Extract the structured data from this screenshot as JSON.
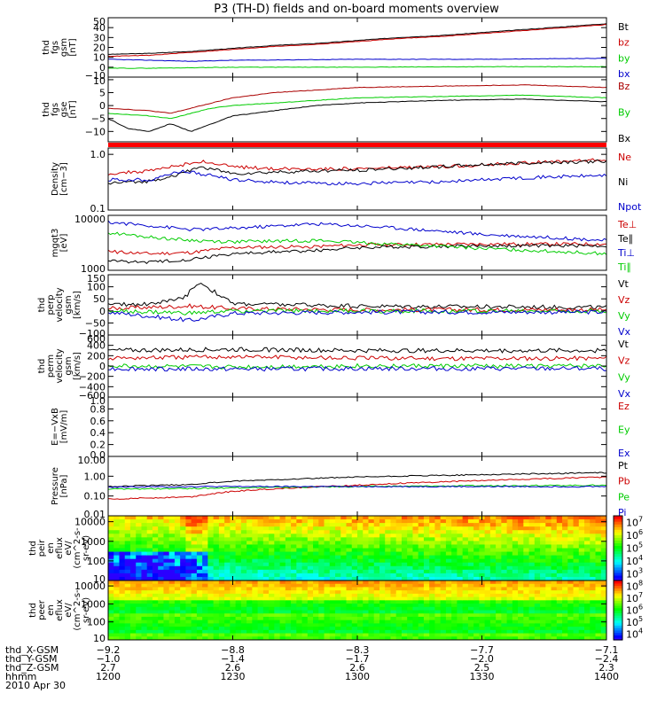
{
  "title": "P3 (TH-D) fields and on-board moments overview",
  "date_label": "2010 Apr 30",
  "chart_data": [
    {
      "id": "fgs_gsm",
      "type": "line",
      "ylabel": [
        "thd",
        "fgs",
        "gsm",
        "[nT]"
      ],
      "ylim": [
        -10,
        50
      ],
      "yticks": [
        -10,
        0,
        10,
        20,
        30,
        40,
        50
      ],
      "tick_labels": [
        "−10",
        "0",
        "10",
        "20",
        "30",
        "40",
        "50"
      ],
      "series": [
        {
          "name": "Bt",
          "color": "#000000",
          "x": [
            1200,
            1210,
            1220,
            1230,
            1240,
            1250,
            1300,
            1310,
            1320,
            1330,
            1340,
            1350,
            1400
          ],
          "y": [
            13,
            14,
            16,
            19,
            22,
            24,
            27,
            30,
            32,
            35,
            38,
            41,
            44
          ]
        },
        {
          "name": "bz",
          "color": "#cc0000",
          "x": [
            1200,
            1210,
            1220,
            1230,
            1240,
            1250,
            1300,
            1310,
            1320,
            1330,
            1340,
            1350,
            1400
          ],
          "y": [
            11,
            12,
            15,
            18,
            21,
            23,
            26,
            29,
            31,
            34,
            37,
            40,
            43
          ]
        },
        {
          "name": "by",
          "color": "#00cc00",
          "x": [
            1200,
            1210,
            1220,
            1230,
            1300,
            1330,
            1400
          ],
          "y": [
            -1,
            -1,
            -0.5,
            0,
            0,
            0.5,
            0.5
          ]
        },
        {
          "name": "bx",
          "color": "#0000cc",
          "x": [
            1200,
            1210,
            1220,
            1230,
            1300,
            1330,
            1400
          ],
          "y": [
            8,
            7,
            6,
            7,
            8,
            8,
            9
          ]
        }
      ]
    },
    {
      "id": "fgs_gse",
      "type": "line",
      "ylabel": [
        "thd",
        "fgs",
        "gse",
        "[nT]"
      ],
      "ylim": [
        -14,
        11
      ],
      "yticks": [
        -10,
        -5,
        0,
        5,
        10
      ],
      "tick_labels": [
        "−10",
        "−5",
        "0",
        "5",
        "10"
      ],
      "series": [
        {
          "name": "Bz",
          "color": "#aa0000",
          "x": [
            1200,
            1210,
            1215,
            1220,
            1225,
            1230,
            1240,
            1250,
            1300,
            1320,
            1340,
            1400
          ],
          "y": [
            -1,
            -2,
            -3,
            -1,
            1,
            3,
            5,
            6,
            7,
            7.5,
            8,
            7
          ]
        },
        {
          "name": "By",
          "color": "#00cc00",
          "x": [
            1200,
            1210,
            1215,
            1220,
            1225,
            1230,
            1240,
            1250,
            1300,
            1320,
            1340,
            1400
          ],
          "y": [
            -3,
            -4,
            -5,
            -3,
            -1,
            0,
            1,
            2,
            3,
            3.5,
            4,
            3
          ]
        },
        {
          "name": "Bx",
          "color": "#000000",
          "x": [
            1200,
            1205,
            1210,
            1215,
            1220,
            1225,
            1230,
            1240,
            1250,
            1300,
            1320,
            1340,
            1400
          ],
          "y": [
            -5,
            -9,
            -10,
            -7,
            -10,
            -7,
            -4,
            -2,
            0,
            1,
            2,
            2.5,
            1.5
          ]
        }
      ]
    },
    {
      "id": "density",
      "type": "line",
      "ylabel": [
        "Density",
        "[cm−3]"
      ],
      "log": true,
      "ylim": [
        0.1,
        1.3
      ],
      "yticks": [
        0.1,
        1.0
      ],
      "tick_labels": [
        "0.1",
        "1.0"
      ],
      "series": [
        {
          "name": "Ne",
          "color": "#cc0000",
          "x": [
            1200,
            1210,
            1218,
            1222,
            1230,
            1240,
            1250,
            1300,
            1320,
            1340,
            1400
          ],
          "y": [
            0.45,
            0.5,
            0.65,
            0.75,
            0.6,
            0.55,
            0.55,
            0.55,
            0.6,
            0.7,
            0.8
          ]
        },
        {
          "name": "Ni",
          "color": "#000000",
          "x": [
            1200,
            1210,
            1218,
            1222,
            1230,
            1240,
            1250,
            1300,
            1320,
            1340,
            1400
          ],
          "y": [
            0.3,
            0.33,
            0.45,
            0.6,
            0.45,
            0.48,
            0.5,
            0.52,
            0.6,
            0.7,
            0.75
          ]
        },
        {
          "name": "Npot",
          "color": "#0000cc",
          "x": [
            1200,
            1210,
            1218,
            1222,
            1230,
            1240,
            1250,
            1300,
            1320,
            1340,
            1400
          ],
          "y": [
            0.35,
            0.35,
            0.5,
            0.45,
            0.35,
            0.32,
            0.3,
            0.3,
            0.32,
            0.38,
            0.42
          ]
        }
      ]
    },
    {
      "id": "temperature",
      "type": "line",
      "ylabel": [
        "mgqt3",
        "[eV]"
      ],
      "log": true,
      "ylim": [
        1000,
        10000
      ],
      "yticks": [
        1000,
        10000
      ],
      "tick_labels": [
        "1000",
        "10000"
      ],
      "series": [
        {
          "name": "Te⊥",
          "color": "#cc0000",
          "x": [
            1200,
            1210,
            1220,
            1230,
            1250,
            1300,
            1330,
            1400
          ],
          "y": [
            2200,
            2000,
            2100,
            2600,
            2700,
            2900,
            3000,
            3000
          ]
        },
        {
          "name": "Te∥",
          "color": "#000000",
          "x": [
            1200,
            1210,
            1220,
            1230,
            1250,
            1300,
            1330,
            1400
          ],
          "y": [
            1500,
            1400,
            1600,
            2000,
            2300,
            2600,
            2800,
            2800
          ]
        },
        {
          "name": "Ti⊥",
          "color": "#0000cc",
          "x": [
            1200,
            1210,
            1220,
            1230,
            1250,
            1300,
            1330,
            1400
          ],
          "y": [
            7500,
            6500,
            5500,
            5800,
            7000,
            6500,
            4500,
            3500
          ]
        },
        {
          "name": "Ti∥",
          "color": "#00cc00",
          "x": [
            1200,
            1210,
            1220,
            1230,
            1250,
            1300,
            1330,
            1400
          ],
          "y": [
            4800,
            4000,
            3500,
            3300,
            3500,
            3200,
            2500,
            2000
          ]
        }
      ]
    },
    {
      "id": "perp_velocity",
      "type": "line",
      "ylabel": [
        "thd",
        "perp",
        "velocity",
        "gsm",
        "[km/s]"
      ],
      "ylim": [
        -100,
        150
      ],
      "yticks": [
        -100,
        -50,
        0,
        50,
        100,
        150
      ],
      "tick_labels": [
        "−100",
        "−50",
        "0",
        "50",
        "100",
        "150"
      ],
      "series": [
        {
          "name": "Vt",
          "color": "#000000",
          "x": [
            1200,
            1210,
            1218,
            1222,
            1230,
            1300,
            1400
          ],
          "y": [
            25,
            30,
            50,
            120,
            30,
            20,
            15
          ]
        },
        {
          "name": "Vz",
          "color": "#cc0000",
          "x": [
            1200,
            1220,
            1230,
            1300,
            1400
          ],
          "y": [
            10,
            20,
            10,
            5,
            5
          ]
        },
        {
          "name": "Vy",
          "color": "#00cc00",
          "x": [
            1200,
            1220,
            1230,
            1300,
            1400
          ],
          "y": [
            0,
            -10,
            0,
            0,
            0
          ]
        },
        {
          "name": "Vx",
          "color": "#0000cc",
          "x": [
            1200,
            1220,
            1230,
            1300,
            1400
          ],
          "y": [
            -5,
            -40,
            -10,
            -5,
            -5
          ]
        }
      ]
    },
    {
      "id": "perm_velocity",
      "type": "line",
      "ylabel": [
        "thd",
        "perm",
        "velocity",
        "gsm",
        "[km/s]"
      ],
      "ylim": [
        -600,
        600
      ],
      "yticks": [
        -600,
        -400,
        -200,
        0,
        200,
        400,
        600
      ],
      "tick_labels": [
        "−600",
        "−400",
        "−200",
        "0",
        "200",
        "400",
        "600"
      ],
      "series": [
        {
          "name": "Vt",
          "color": "#000000",
          "x": [
            1200,
            1230,
            1300,
            1400
          ],
          "y": [
            300,
            320,
            300,
            300
          ]
        },
        {
          "name": "Vz",
          "color": "#cc0000",
          "x": [
            1200,
            1230,
            1300,
            1400
          ],
          "y": [
            150,
            180,
            150,
            150
          ]
        },
        {
          "name": "Vy",
          "color": "#00cc00",
          "x": [
            1200,
            1230,
            1300,
            1400
          ],
          "y": [
            0,
            -20,
            0,
            0
          ]
        },
        {
          "name": "Vx",
          "color": "#0000cc",
          "x": [
            1200,
            1230,
            1300,
            1400
          ],
          "y": [
            -50,
            -60,
            -50,
            -50
          ]
        }
      ]
    },
    {
      "id": "efield",
      "type": "line",
      "ylabel": [
        "E=−VxB",
        "[mV/m]"
      ],
      "ylim": [
        0,
        1.0
      ],
      "yticks": [
        0,
        0.2,
        0.4,
        0.6,
        0.8,
        1.0
      ],
      "tick_labels": [
        "0.0",
        "0.2",
        "0.4",
        "0.6",
        "0.8",
        "1.0"
      ],
      "series": [
        {
          "name": "Ez",
          "color": "#cc0000",
          "x": [],
          "y": []
        },
        {
          "name": "Ey",
          "color": "#00cc00",
          "x": [],
          "y": []
        },
        {
          "name": "Ex",
          "color": "#0000cc",
          "x": [],
          "y": []
        }
      ]
    },
    {
      "id": "pressure",
      "type": "line",
      "ylabel": [
        "Pressure",
        "[nPa]"
      ],
      "log": true,
      "ylim": [
        0.01,
        10
      ],
      "yticks": [
        0.01,
        0.1,
        1,
        10
      ],
      "tick_labels": [
        "0.01",
        "0.10",
        "1.00",
        "10.00"
      ],
      "series": [
        {
          "name": "Pt",
          "color": "#000000",
          "x": [
            1200,
            1220,
            1230,
            1300,
            1330,
            1400
          ],
          "y": [
            0.3,
            0.38,
            0.55,
            0.9,
            1.2,
            1.5
          ]
        },
        {
          "name": "Pb",
          "color": "#cc0000",
          "x": [
            1200,
            1220,
            1230,
            1300,
            1330,
            1400
          ],
          "y": [
            0.07,
            0.09,
            0.17,
            0.35,
            0.6,
            0.9
          ]
        },
        {
          "name": "Pe",
          "color": "#00cc00",
          "x": [
            1200,
            1220,
            1230,
            1300,
            1330,
            1400
          ],
          "y": [
            0.22,
            0.24,
            0.26,
            0.3,
            0.33,
            0.35
          ]
        },
        {
          "name": "Pi",
          "color": "#0000cc",
          "x": [
            1200,
            1220,
            1230,
            1300,
            1330,
            1400
          ],
          "y": [
            0.28,
            0.3,
            0.3,
            0.3,
            0.3,
            0.3
          ]
        }
      ]
    },
    {
      "id": "peir_spectrogram",
      "type": "heatmap",
      "ylabel": [
        "thd",
        "peir",
        "en",
        "eflux",
        "eV/",
        "(cm^2-s-",
        "sr-eV)"
      ],
      "log": true,
      "ylim": [
        10,
        20000
      ],
      "yticks": [
        10,
        100,
        1000,
        10000
      ],
      "tick_labels": [
        "10",
        "100",
        "1000",
        "10000"
      ],
      "colorbar_ticks": [
        "10^3",
        "10^4",
        "10^5",
        "10^6",
        "10^7"
      ]
    },
    {
      "id": "peer_spectrogram",
      "type": "heatmap",
      "ylabel": [
        "thd",
        "peer",
        "en",
        "eflux",
        "eV/",
        "(cm^2-s-",
        "sr-eV)"
      ],
      "log": true,
      "ylim": [
        10,
        20000
      ],
      "yticks": [
        10,
        100,
        1000,
        10000
      ],
      "tick_labels": [
        "10",
        "100",
        "1000",
        "10000"
      ],
      "colorbar_ticks": [
        "10^4",
        "10^5",
        "10^6",
        "10^7",
        "10^8"
      ]
    }
  ],
  "ephemeris": {
    "labels": [
      "thd_X-GSM",
      "thd_Y-GSM",
      "thd_Z-GSM",
      "hhmm"
    ],
    "columns": [
      {
        "x": 1200,
        "values": [
          "−9.2",
          "−1.0",
          "2.7",
          "1200"
        ]
      },
      {
        "x": 1230,
        "values": [
          "−8.8",
          "−1.4",
          "2.6",
          "1230"
        ]
      },
      {
        "x": 1300,
        "values": [
          "−8.3",
          "−1.7",
          "2.6",
          "1300"
        ]
      },
      {
        "x": 1330,
        "values": [
          "−7.7",
          "−2.0",
          "2.5",
          "1330"
        ]
      },
      {
        "x": 1400,
        "values": [
          "−7.1",
          "−2.4",
          "2.3",
          "1400"
        ]
      }
    ]
  }
}
